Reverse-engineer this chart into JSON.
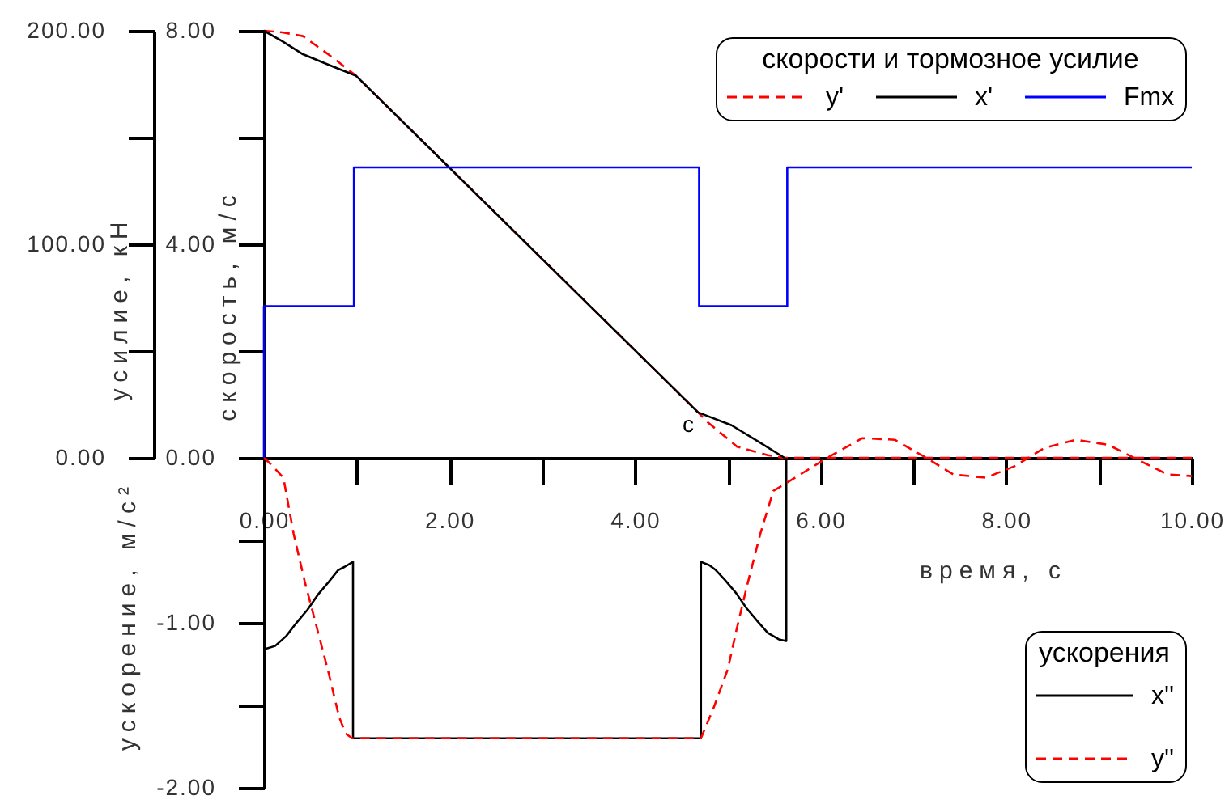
{
  "chart_data": {
    "type": "line",
    "xlabel": "время, с",
    "ylabel": "скорость, м/с",
    "y2label": "усилие, кН",
    "y3label": "ускорение, м/с²",
    "xlim": [
      0,
      10
    ],
    "xticks": [
      {
        "value": 0,
        "label": "0.00"
      },
      {
        "value": 1,
        "label": null
      },
      {
        "value": 2,
        "label": "2.00"
      },
      {
        "value": 3,
        "label": null
      },
      {
        "value": 4,
        "label": "4.00"
      },
      {
        "value": 5,
        "label": null
      },
      {
        "value": 6,
        "label": "6.00"
      },
      {
        "value": 7,
        "label": null
      },
      {
        "value": 8,
        "label": "8.00"
      },
      {
        "value": 9,
        "label": null
      },
      {
        "value": 10,
        "label": "10.00"
      }
    ],
    "ylim": [
      0,
      8
    ],
    "yticks": [
      {
        "value": 0,
        "label": "0.00"
      },
      {
        "value": 2,
        "label": null
      },
      {
        "value": 4,
        "label": "4.00"
      },
      {
        "value": 6,
        "label": null
      },
      {
        "value": 8,
        "label": "8.00"
      }
    ],
    "y2lim": [
      0,
      200
    ],
    "y2ticks": [
      {
        "value": 0,
        "label": "0.00"
      },
      {
        "value": 50,
        "label": null
      },
      {
        "value": 100,
        "label": "100.00"
      },
      {
        "value": 150,
        "label": null
      },
      {
        "value": 200,
        "label": "200.00"
      }
    ],
    "y3lim": [
      -2,
      2.59
    ],
    "y3ticks": [
      {
        "value": -2,
        "label": "-2.00"
      },
      {
        "value": -1.5,
        "label": null
      },
      {
        "value": -1,
        "label": "-1.00"
      },
      {
        "value": -0.5,
        "label": null
      }
    ],
    "legend": "right",
    "legend_title": [
      "скорости и тормозное усилие",
      "ускорения"
    ],
    "series": [
      {
        "name": "y'",
        "color": "#ff0000",
        "line_style": "dashed",
        "x": [
          0,
          0.2,
          0.42,
          0.74,
          0.99,
          4.68,
          4.78,
          5.1,
          5.43,
          5.6,
          10
        ],
        "values": [
          8.0,
          7.97,
          7.9,
          7.5,
          7.16,
          0.85,
          0.67,
          0.21,
          0.05,
          0,
          0
        ]
      },
      {
        "name": "x'",
        "color": "#000000",
        "x": [
          0,
          0.2,
          0.42,
          0.7,
          0.99,
          4.68,
          5.04,
          5.36,
          5.61
        ],
        "values": [
          8.0,
          7.8,
          7.56,
          7.36,
          7.16,
          0.85,
          0.61,
          0.27,
          0
        ]
      },
      {
        "name": "Fmx",
        "color": "#0000ff",
        "axis": "y2",
        "x": [
          0,
          0,
          0.97,
          0.97,
          4.69,
          4.69,
          5.64,
          5.64,
          10
        ],
        "values": [
          0,
          71,
          71,
          136,
          136,
          71,
          71,
          136,
          136
        ]
      },
      {
        "name": "x''",
        "color": "#000000",
        "axis": "y3",
        "x": [
          0,
          0.12,
          0.24,
          0.35,
          0.47,
          0.58,
          0.7,
          0.8,
          0.87,
          0.96,
          0.96,
          4.71,
          4.71,
          4.8,
          4.87,
          4.97,
          5.09,
          5.2,
          5.32,
          5.43,
          5.55,
          5.63,
          5.63
        ],
        "values": [
          -1.16,
          -1.14,
          -1.08,
          -1.0,
          -0.92,
          -0.83,
          -0.75,
          -0.68,
          -0.66,
          -0.63,
          -1.7,
          -1.7,
          -0.63,
          -0.65,
          -0.68,
          -0.74,
          -0.82,
          -0.91,
          -0.99,
          -1.06,
          -1.1,
          -1.11,
          0
        ]
      },
      {
        "name": "y''",
        "color": "#ff0000",
        "line_style": "dashed",
        "axis": "y3",
        "x": [
          0,
          0.06,
          0.21,
          0.32,
          0.44,
          0.58,
          0.7,
          0.81,
          0.88,
          0.95,
          4.71,
          4.85,
          5.0,
          5.09,
          5.2,
          5.35,
          5.49,
          5.81,
          6.1,
          6.45,
          6.8,
          7.11,
          7.43,
          7.78,
          8.09,
          8.41,
          8.75,
          9.1,
          9.45,
          9.74,
          10
        ],
        "values": [
          0,
          -0.03,
          -0.12,
          -0.46,
          -0.75,
          -1.05,
          -1.31,
          -1.57,
          -1.67,
          -1.7,
          -1.7,
          -1.51,
          -1.28,
          -1.05,
          -0.79,
          -0.46,
          -0.2,
          -0.09,
          0.01,
          0.12,
          0.11,
          0.01,
          -0.1,
          -0.12,
          -0.05,
          0.06,
          0.11,
          0.08,
          -0.02,
          -0.1,
          -0.11
        ]
      }
    ],
    "annotations": [
      "c"
    ]
  }
}
